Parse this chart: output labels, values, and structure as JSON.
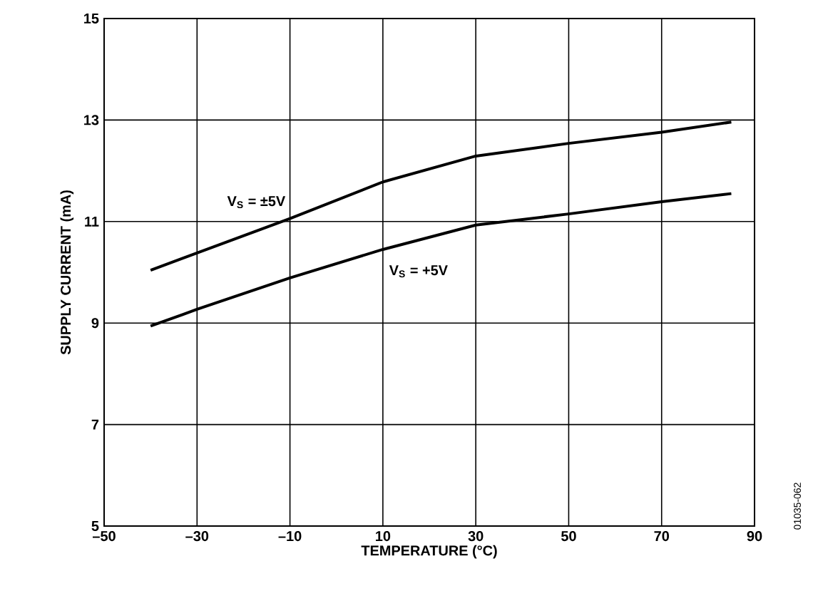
{
  "chart_data": {
    "type": "line",
    "xlabel": "TEMPERATURE (°C)",
    "ylabel": "SUPPLY CURRENT (mA)",
    "x": [
      -40,
      -30,
      -10,
      10,
      30,
      50,
      70,
      85
    ],
    "series": [
      {
        "name": "V$_{S}$ = ±5V",
        "color": "#000000",
        "values": [
          10.04,
          10.38,
          11.06,
          11.78,
          12.29,
          12.54,
          12.76,
          12.96
        ]
      },
      {
        "name": "V$_{S}$ = +5V",
        "color": "#000000",
        "values": [
          8.94,
          9.27,
          9.89,
          10.45,
          10.93,
          11.15,
          11.39,
          11.55
        ]
      }
    ],
    "xlim": [
      -50,
      90
    ],
    "ylim": [
      5,
      15
    ],
    "xticks": [
      {
        "value": -50,
        "label": "–50"
      },
      {
        "value": -30,
        "label": "–30"
      },
      {
        "value": -10,
        "label": "–10"
      },
      10,
      30,
      50,
      70,
      90
    ],
    "yticks": [
      5,
      7,
      9,
      11,
      13,
      15
    ],
    "grid": true,
    "legend": false,
    "marker": "none",
    "line_style": "solid",
    "annotations": [
      "01035-062"
    ]
  }
}
